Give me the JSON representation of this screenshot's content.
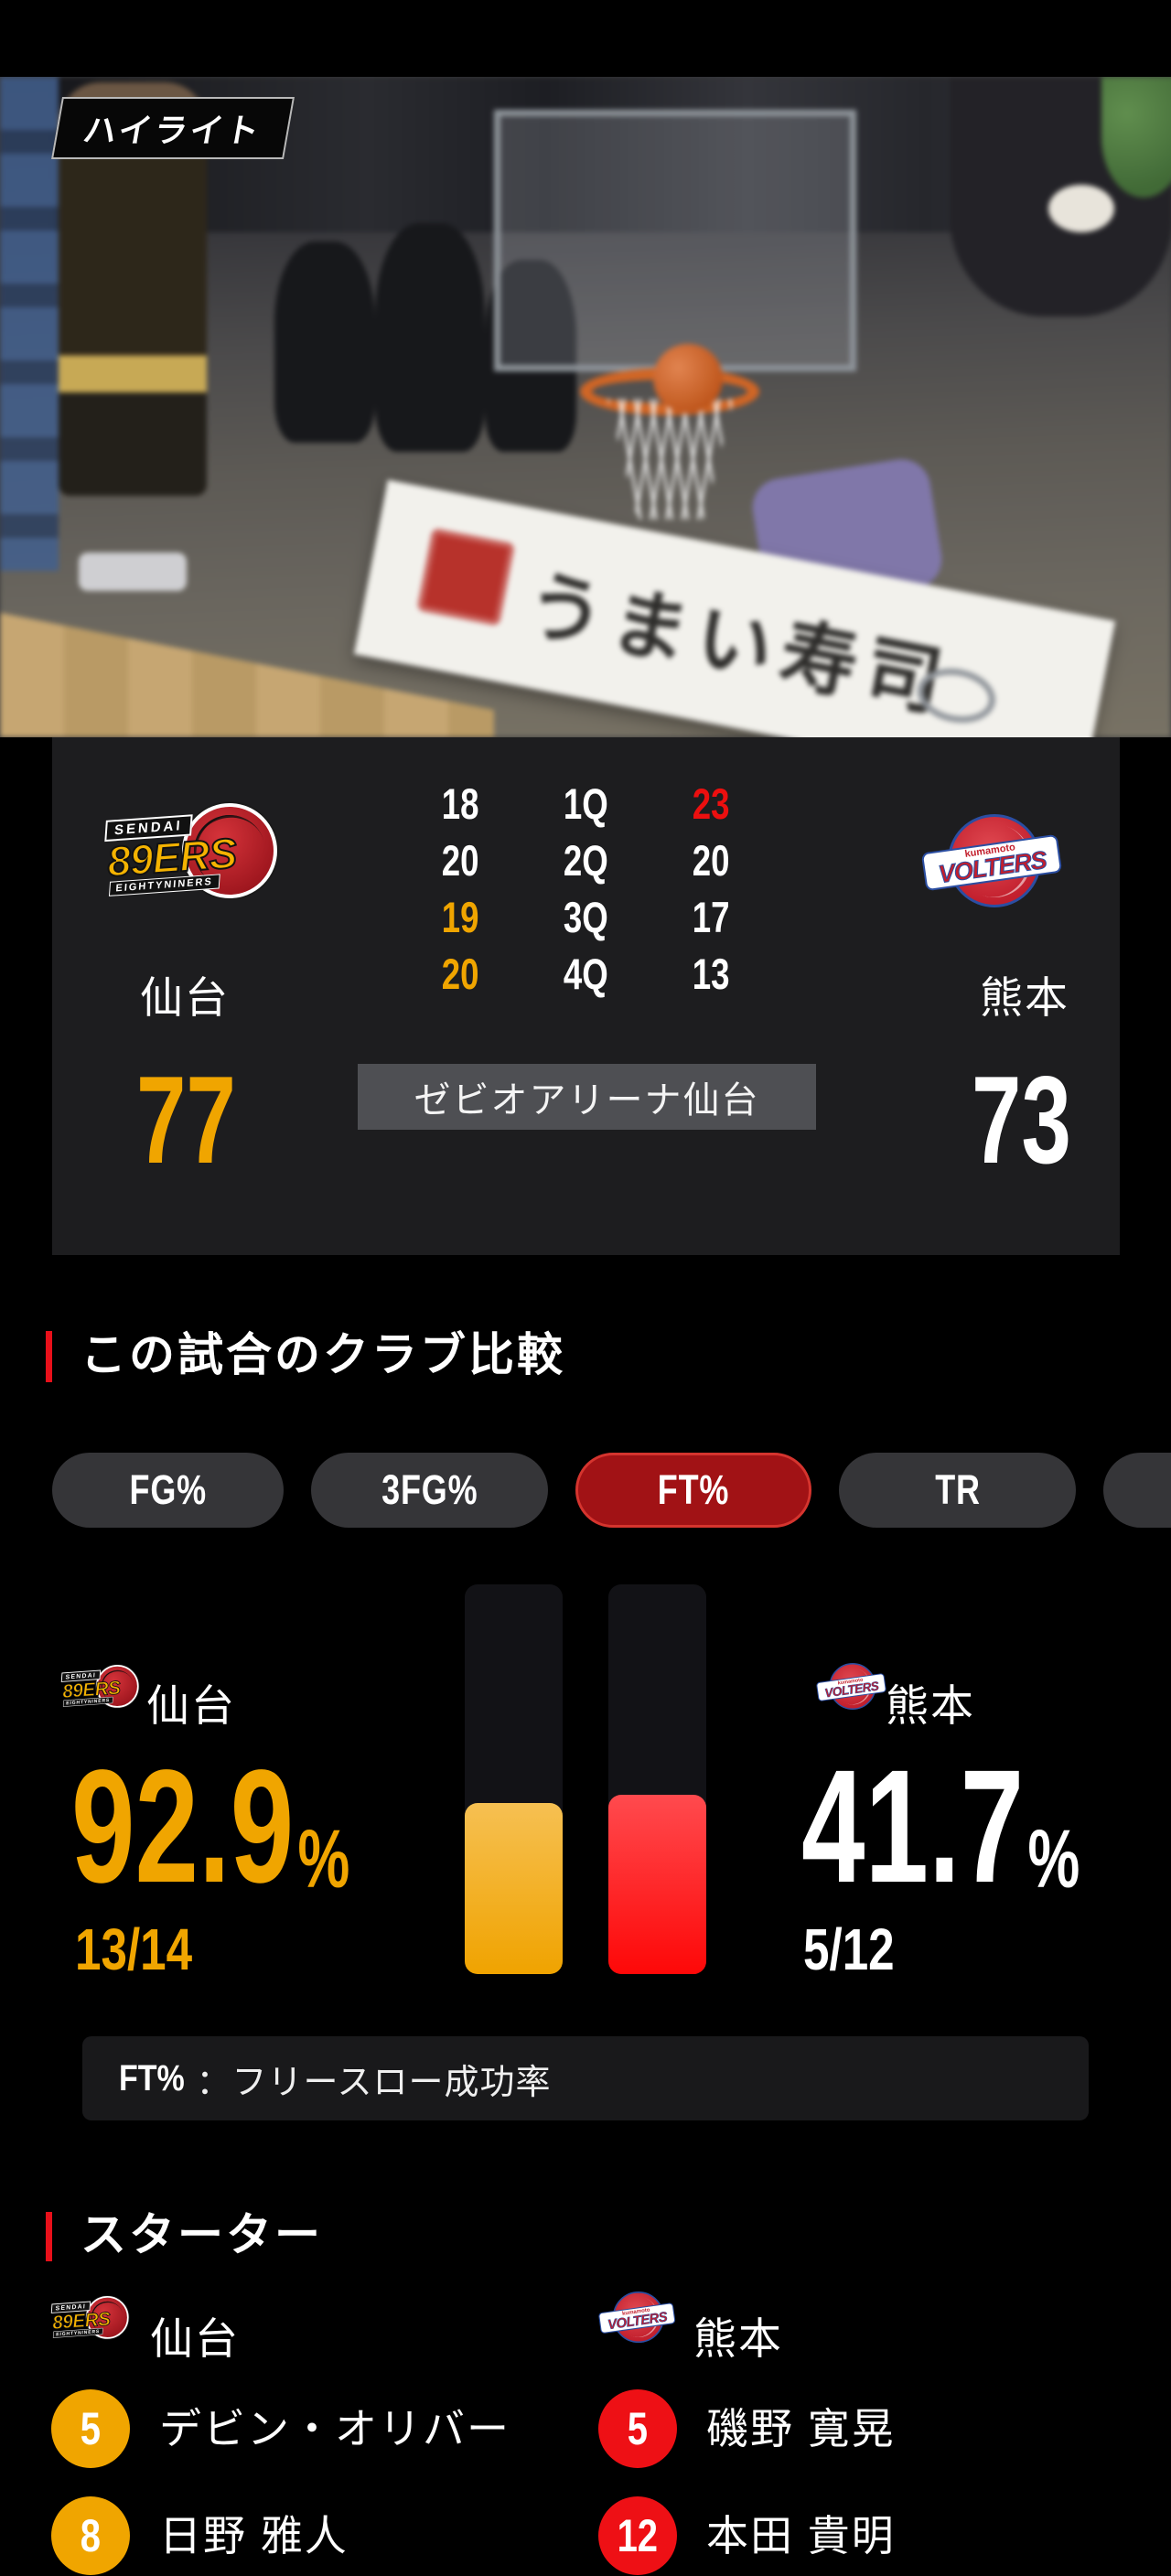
{
  "video": {
    "badge_label": "ハイライト",
    "banner_text": "うまい寿司"
  },
  "scoreboard": {
    "home": {
      "name": "仙台",
      "score": "77"
    },
    "away": {
      "name": "熊本",
      "score": "73"
    },
    "venue": "ゼビオアリーナ仙台",
    "quarters": [
      {
        "label": "1Q",
        "home": "18",
        "away": "23",
        "home_color": "",
        "away_color": "red"
      },
      {
        "label": "2Q",
        "home": "20",
        "away": "20",
        "home_color": "",
        "away_color": ""
      },
      {
        "label": "3Q",
        "home": "19",
        "away": "17",
        "home_color": "gold",
        "away_color": ""
      },
      {
        "label": "4Q",
        "home": "20",
        "away": "13",
        "home_color": "gold",
        "away_color": ""
      }
    ]
  },
  "comparison": {
    "section_title": "この試合のクラブ比較",
    "tabs": [
      {
        "label": "FG%",
        "active": false
      },
      {
        "label": "3FG%",
        "active": false
      },
      {
        "label": "FT%",
        "active": true
      },
      {
        "label": "TR",
        "active": false
      },
      {
        "label": "",
        "active": false
      }
    ],
    "home": {
      "team": "仙台",
      "value": "92.9",
      "unit": "%",
      "fraction": "13/14"
    },
    "away": {
      "team": "熊本",
      "value": "41.7",
      "unit": "%",
      "fraction": "5/12"
    },
    "bars": {
      "home": {
        "fill_percent": 44,
        "color": "#F0A500"
      },
      "away": {
        "fill_percent": 46,
        "color": "#FE1111"
      }
    },
    "note": {
      "label": "FT%",
      "separator": "：",
      "text": "フリースロー成功率"
    }
  },
  "starters": {
    "section_title": "スターター",
    "home": {
      "team": "仙台",
      "players": [
        {
          "number": "5",
          "name": "デビン・オリバー"
        },
        {
          "number": "8",
          "name": "日野 雅人"
        }
      ]
    },
    "away": {
      "team": "熊本",
      "players": [
        {
          "number": "5",
          "name": "磯野 寛晃"
        },
        {
          "number": "12",
          "name": "本田 貴明"
        }
      ]
    }
  },
  "logos": {
    "sendai": {
      "top": "SENDAI",
      "main": "89ERS",
      "bottom": "EIGHTYNINERS"
    },
    "kumamoto": {
      "top": "kumamoto",
      "main": "VOLTERS"
    }
  },
  "colors": {
    "gold": "#F0A500",
    "bright_red": "#EC0F0F",
    "accent_red": "#E8101A",
    "tab_active_bg": "#A11215"
  }
}
